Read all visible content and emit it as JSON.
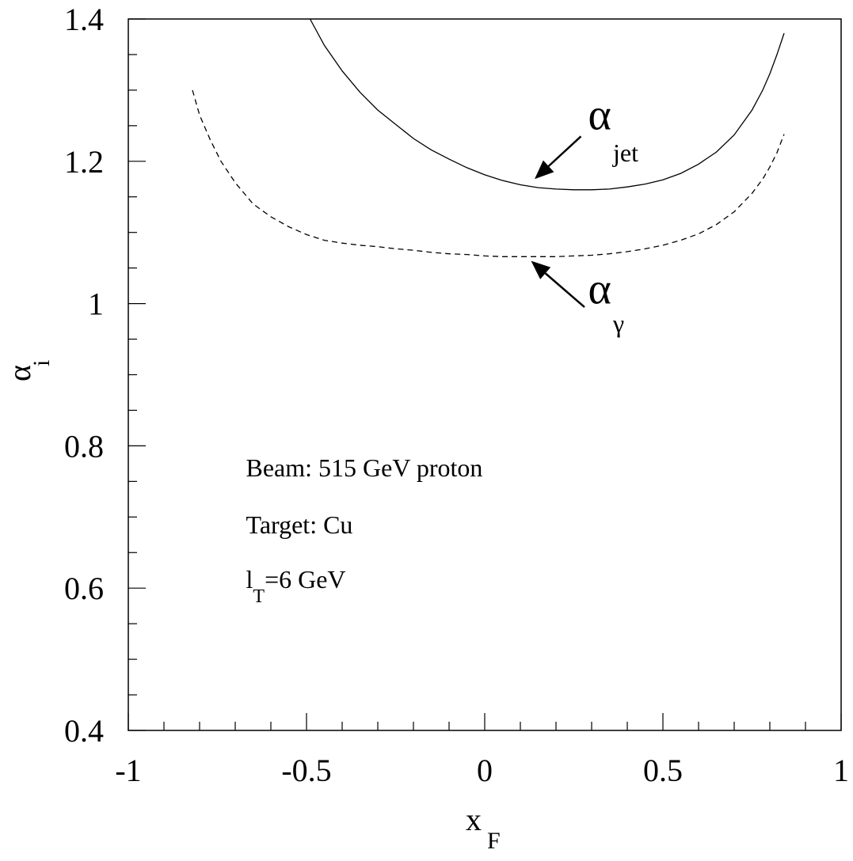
{
  "chart_data": {
    "type": "line",
    "xlabel": "x",
    "xlabel_sub": "F",
    "ylabel": "α",
    "ylabel_sub": "i",
    "xlim": [
      -1,
      1
    ],
    "ylim": [
      0.4,
      1.4
    ],
    "x_ticks": [
      {
        "value": -1,
        "label": "-1"
      },
      {
        "value": -0.5,
        "label": "-0.5"
      },
      {
        "value": 0,
        "label": "0"
      },
      {
        "value": 0.5,
        "label": "0.5"
      },
      {
        "value": 1,
        "label": "1"
      }
    ],
    "y_ticks": [
      {
        "value": 0.4,
        "label": "0.4"
      },
      {
        "value": 0.6,
        "label": "0.6"
      },
      {
        "value": 0.8,
        "label": "0.8"
      },
      {
        "value": 1.0,
        "label": "1"
      },
      {
        "value": 1.2,
        "label": "1.2"
      },
      {
        "value": 1.4,
        "label": "1.4"
      }
    ],
    "grid": false,
    "series": [
      {
        "name": "α_jet",
        "style": "solid",
        "color": "#000000",
        "x": [
          -0.49,
          -0.45,
          -0.4,
          -0.35,
          -0.3,
          -0.25,
          -0.2,
          -0.15,
          -0.1,
          -0.05,
          0.0,
          0.05,
          0.1,
          0.15,
          0.2,
          0.25,
          0.3,
          0.35,
          0.4,
          0.45,
          0.5,
          0.55,
          0.6,
          0.65,
          0.7,
          0.75,
          0.78,
          0.8,
          0.82,
          0.84
        ],
        "y": [
          1.4,
          1.363,
          1.327,
          1.297,
          1.272,
          1.252,
          1.232,
          1.216,
          1.203,
          1.191,
          1.181,
          1.173,
          1.167,
          1.163,
          1.161,
          1.16,
          1.16,
          1.161,
          1.164,
          1.168,
          1.174,
          1.183,
          1.196,
          1.213,
          1.237,
          1.272,
          1.3,
          1.323,
          1.35,
          1.38
        ]
      },
      {
        "name": "α_γ",
        "style": "dashed",
        "color": "#000000",
        "x": [
          -0.82,
          -0.8,
          -0.77,
          -0.74,
          -0.7,
          -0.65,
          -0.6,
          -0.55,
          -0.5,
          -0.45,
          -0.4,
          -0.35,
          -0.3,
          -0.25,
          -0.2,
          -0.15,
          -0.1,
          -0.05,
          0.0,
          0.05,
          0.1,
          0.15,
          0.2,
          0.25,
          0.3,
          0.35,
          0.4,
          0.45,
          0.5,
          0.55,
          0.6,
          0.65,
          0.7,
          0.75,
          0.78,
          0.8,
          0.82,
          0.84
        ],
        "y": [
          1.3,
          1.265,
          1.23,
          1.2,
          1.17,
          1.14,
          1.122,
          1.108,
          1.097,
          1.089,
          1.085,
          1.082,
          1.08,
          1.077,
          1.075,
          1.072,
          1.07,
          1.069,
          1.067,
          1.066,
          1.066,
          1.066,
          1.066,
          1.067,
          1.068,
          1.07,
          1.073,
          1.077,
          1.082,
          1.089,
          1.098,
          1.111,
          1.129,
          1.155,
          1.175,
          1.192,
          1.212,
          1.238
        ]
      }
    ],
    "annotations": [
      {
        "id": "jet",
        "main": "α",
        "sub": "jet",
        "text_at": [
          0.29,
          1.245
        ],
        "sub_at": [
          0.36,
          1.2
        ],
        "arrow_from": [
          0.27,
          1.235
        ],
        "arrow_to": [
          0.14,
          1.175
        ]
      },
      {
        "id": "gamma",
        "main": "α",
        "sub": "γ",
        "text_at": [
          0.29,
          1.0
        ],
        "sub_at": [
          0.36,
          0.96
        ],
        "arrow_from": [
          0.28,
          0.995
        ],
        "arrow_to": [
          0.13,
          1.06
        ]
      }
    ],
    "info_text": [
      {
        "text": "Beam: 515 GeV proton",
        "at": [
          -0.67,
          0.757
        ]
      },
      {
        "text": "Target: Cu",
        "at": [
          -0.67,
          0.677
        ]
      },
      {
        "text": "l",
        "sub": "T",
        "rest": "=6 GeV",
        "at": [
          -0.67,
          0.6
        ]
      }
    ]
  }
}
